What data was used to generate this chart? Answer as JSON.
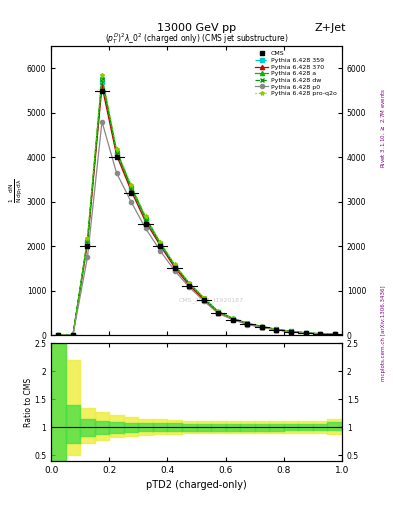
{
  "title_top": "13000 GeV pp",
  "title_right": "Z+Jet",
  "plot_title": "$(p_T^D)^2\\lambda\\_0^2$ (charged only) (CMS jet substructure)",
  "xlabel": "pTD2 (charged-only)",
  "ylabel_ratio": "Ratio to CMS",
  "right_label_top": "Rivet 3.1.10, $\\geq$ 2.7M events",
  "right_label_bot": "mcplots.cern.ch [arXiv:1306.3436]",
  "watermark": "CMS_2021_I1920187",
  "x_bins": [
    0.0,
    0.05,
    0.1,
    0.15,
    0.2,
    0.25,
    0.3,
    0.35,
    0.4,
    0.45,
    0.5,
    0.55,
    0.6,
    0.65,
    0.7,
    0.75,
    0.8,
    0.85,
    0.9,
    0.95,
    1.0
  ],
  "cms_y": [
    0.0,
    0.0,
    2.0,
    5.5,
    4.0,
    3.2,
    2.5,
    2.0,
    1.5,
    1.1,
    0.8,
    0.5,
    0.35,
    0.25,
    0.18,
    0.12,
    0.08,
    0.05,
    0.03,
    0.02
  ],
  "cms_color": "#000000",
  "series": [
    {
      "label": "Pythia 6.428 359",
      "color": "#00cccc",
      "linestyle": "--",
      "marker": "s",
      "markersize": 2.5,
      "y": [
        0.0,
        0.0,
        2.1,
        5.7,
        4.1,
        3.3,
        2.6,
        2.05,
        1.55,
        1.15,
        0.82,
        0.52,
        0.37,
        0.26,
        0.19,
        0.13,
        0.085,
        0.052,
        0.032,
        0.022
      ]
    },
    {
      "label": "Pythia 6.428 370",
      "color": "#cc0000",
      "linestyle": "-",
      "marker": "^",
      "markersize": 3,
      "y": [
        0.0,
        0.0,
        2.05,
        5.6,
        4.05,
        3.25,
        2.55,
        2.02,
        1.52,
        1.12,
        0.8,
        0.51,
        0.36,
        0.25,
        0.18,
        0.12,
        0.082,
        0.05,
        0.03,
        0.02
      ]
    },
    {
      "label": "Pythia 6.428 a",
      "color": "#00bb00",
      "linestyle": "-",
      "marker": "^",
      "markersize": 3,
      "y": [
        0.0,
        0.0,
        2.15,
        5.8,
        4.15,
        3.35,
        2.65,
        2.08,
        1.58,
        1.17,
        0.84,
        0.53,
        0.38,
        0.27,
        0.195,
        0.133,
        0.088,
        0.054,
        0.033,
        0.023
      ]
    },
    {
      "label": "Pythia 6.428 dw",
      "color": "#009900",
      "linestyle": "--",
      "marker": "x",
      "markersize": 3,
      "y": [
        0.0,
        0.0,
        2.12,
        5.75,
        4.12,
        3.32,
        2.62,
        2.06,
        1.56,
        1.16,
        0.83,
        0.525,
        0.375,
        0.265,
        0.192,
        0.13,
        0.086,
        0.052,
        0.032,
        0.022
      ]
    },
    {
      "label": "Pythia 6.428 p0",
      "color": "#888888",
      "linestyle": "-",
      "marker": "o",
      "markersize": 3,
      "y": [
        0.0,
        0.0,
        1.75,
        4.8,
        3.65,
        3.0,
        2.4,
        1.9,
        1.45,
        1.08,
        0.77,
        0.49,
        0.35,
        0.24,
        0.175,
        0.12,
        0.078,
        0.048,
        0.03,
        0.02
      ]
    },
    {
      "label": "Pythia 6.428 pro-q2o",
      "color": "#88cc00",
      "linestyle": ":",
      "marker": "*",
      "markersize": 3,
      "y": [
        0.0,
        0.0,
        2.18,
        5.85,
        4.18,
        3.38,
        2.67,
        2.1,
        1.59,
        1.18,
        0.845,
        0.535,
        0.382,
        0.272,
        0.197,
        0.134,
        0.089,
        0.055,
        0.034,
        0.024
      ]
    }
  ],
  "ratio_band_green_lo": [
    0.35,
    0.72,
    0.85,
    0.88,
    0.9,
    0.92,
    0.93,
    0.93,
    0.93,
    0.94,
    0.94,
    0.94,
    0.94,
    0.94,
    0.94,
    0.94,
    0.95,
    0.95,
    0.95,
    0.95
  ],
  "ratio_band_green_hi": [
    2.5,
    1.4,
    1.15,
    1.12,
    1.1,
    1.08,
    1.07,
    1.07,
    1.07,
    1.06,
    1.06,
    1.06,
    1.06,
    1.06,
    1.06,
    1.06,
    1.05,
    1.05,
    1.05,
    1.1
  ],
  "ratio_band_yellow_lo": [
    0.25,
    0.5,
    0.72,
    0.78,
    0.82,
    0.85,
    0.87,
    0.88,
    0.88,
    0.89,
    0.89,
    0.89,
    0.89,
    0.9,
    0.9,
    0.9,
    0.9,
    0.9,
    0.9,
    0.88
  ],
  "ratio_band_yellow_hi": [
    4.0,
    2.2,
    1.35,
    1.28,
    1.22,
    1.18,
    1.15,
    1.14,
    1.13,
    1.12,
    1.12,
    1.12,
    1.12,
    1.11,
    1.11,
    1.11,
    1.11,
    1.11,
    1.11,
    1.15
  ],
  "ylim_main": [
    0.0,
    6.5
  ],
  "ylim_ratio": [
    0.4,
    2.5
  ],
  "yticks_main": [
    0,
    1,
    2,
    3,
    4,
    5,
    6
  ],
  "ytick_labels_main": [
    "0",
    "1000",
    "2000",
    "3000",
    "4000",
    "5000",
    "6000"
  ],
  "yticks_ratio": [
    0.5,
    1.0,
    1.5,
    2.0,
    2.5
  ],
  "ytick_labels_ratio": [
    "0.5",
    "1",
    "1.5",
    "2",
    "2.5"
  ],
  "background_color": "#ffffff"
}
